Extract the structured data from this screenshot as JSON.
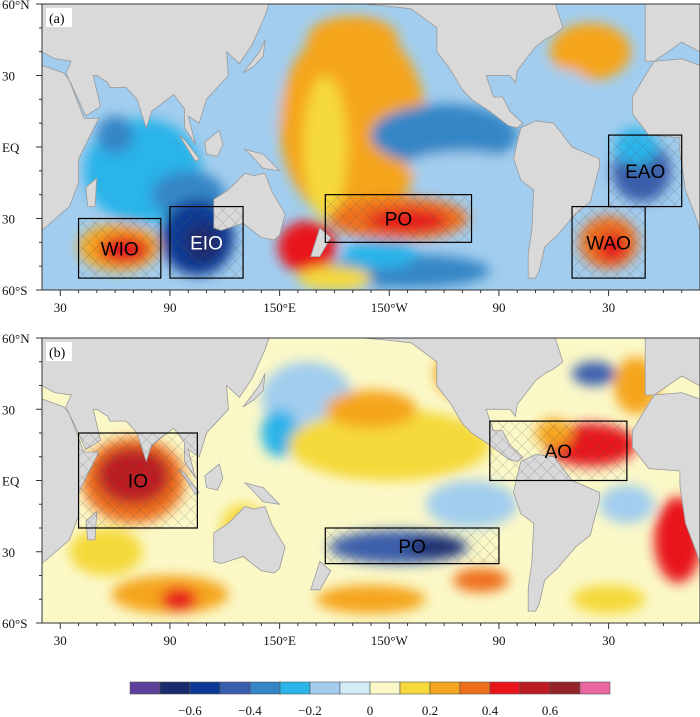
{
  "figure": {
    "panels": [
      {
        "label": "(a)",
        "regions": [
          {
            "name": "WIO",
            "lon": [
              40,
              85
            ],
            "lat": [
              -30,
              -55
            ],
            "text_color": "#000000"
          },
          {
            "name": "EIO",
            "lon": [
              90,
              130
            ],
            "lat": [
              -25,
              -55
            ],
            "text_color": "#ffffff"
          },
          {
            "name": "PO",
            "lon": [
              175,
              255
            ],
            "lat": [
              -20,
              -40
            ],
            "text_color": "#000000"
          },
          {
            "name": "WAO",
            "lon": [
              310,
              350
            ],
            "lat": [
              -25,
              -55
            ],
            "text_color": "#000000"
          },
          {
            "name": "EAO",
            "lon": [
              330,
              370
            ],
            "lat": [
              5,
              -25
            ],
            "text_color": "#000000"
          }
        ]
      },
      {
        "label": "(b)",
        "regions": [
          {
            "name": "IO",
            "lon": [
              40,
              105
            ],
            "lat": [
              20,
              -20
            ],
            "text_color": "#000000"
          },
          {
            "name": "PO",
            "lon": [
              175,
              270
            ],
            "lat": [
              -20,
              -35
            ],
            "text_color": "#000000"
          },
          {
            "name": "AO",
            "lon": [
              265,
              340
            ],
            "lat": [
              25,
              0
            ],
            "text_color": "#000000"
          }
        ]
      }
    ],
    "x_ticks": [
      {
        "lon": 30,
        "label": "30"
      },
      {
        "lon": 90,
        "label": "90"
      },
      {
        "lon": 150,
        "label": "150°E"
      },
      {
        "lon": 210,
        "label": "150°W"
      },
      {
        "lon": 270,
        "label": "90"
      },
      {
        "lon": 330,
        "label": "30"
      }
    ],
    "y_ticks": [
      {
        "lat": 60,
        "label": "60°N"
      },
      {
        "lat": 30,
        "label": "30"
      },
      {
        "lat": 0,
        "label": "EQ"
      },
      {
        "lat": -30,
        "label": "30"
      },
      {
        "lat": -60,
        "label": "60°S"
      }
    ],
    "colorbar": {
      "colors": [
        "#5e3f9a",
        "#1a2a6c",
        "#0a3a96",
        "#3a5eae",
        "#3586c6",
        "#2cb4e9",
        "#a2cdee",
        "#d2ecf6",
        "#fbf8c8",
        "#f5d93a",
        "#f5a51d",
        "#ef6f1d",
        "#e8161b",
        "#bd1a23",
        "#94232a",
        "#e865a0"
      ],
      "boundaries": [
        -0.7,
        -0.6,
        -0.5,
        -0.4,
        -0.3,
        -0.2,
        -0.1,
        0,
        0.1,
        0.2,
        0.3,
        0.4,
        0.5,
        0.6,
        0.7
      ],
      "labels": [
        {
          "value": -0.6,
          "label": "−0.6"
        },
        {
          "value": -0.4,
          "label": "−0.4"
        },
        {
          "value": -0.2,
          "label": "−0.2"
        },
        {
          "value": 0,
          "label": "0"
        },
        {
          "value": 0.2,
          "label": "0.2"
        },
        {
          "value": 0.4,
          "label": "0.4"
        },
        {
          "value": 0.6,
          "label": "0.6"
        }
      ]
    },
    "land_color": "#d9d9d9"
  }
}
